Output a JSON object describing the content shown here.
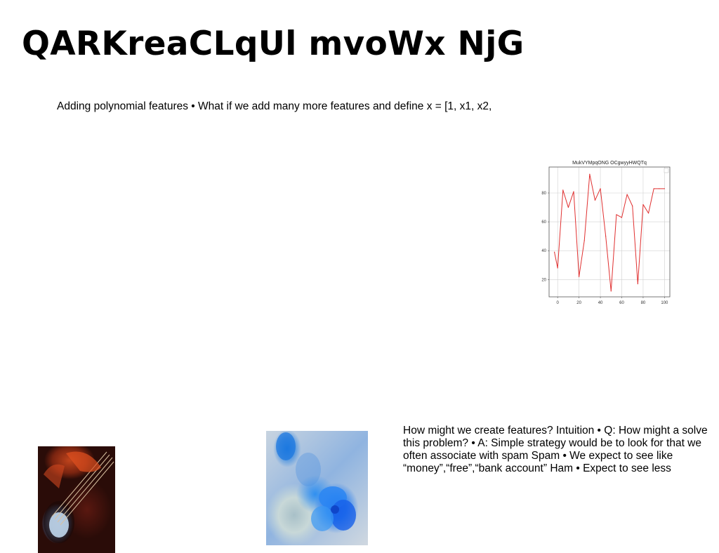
{
  "slide": {
    "title": "QARKreaCLqUl mvoWx NjG",
    "text_a": "Adding polynomial features • What if we add many more features and define x = [1, x1, x2,",
    "text_b": "How might we create features? Intuition • Q: How might a solve this problem? • A: Simple strategy would be to look for that we often associate with spam Spam • We expect to see like “money”,“free”,“bank account” Ham • Expect to see less"
  },
  "images": {
    "guitar": "guitar-photo",
    "flower": "blue-flower-photo"
  },
  "chart_data": {
    "type": "line",
    "title": "MukVYMpqONG OCgwyyHWQTq",
    "x": [
      -3,
      0,
      5,
      10,
      15,
      20,
      25,
      30,
      35,
      40,
      45,
      50,
      55,
      60,
      65,
      70,
      75,
      80,
      85,
      90,
      95,
      100
    ],
    "series": [
      {
        "color": "#e03030",
        "values": [
          39,
          28,
          82,
          70,
          81,
          22,
          47,
          93,
          75,
          83,
          50,
          12,
          65,
          63,
          79,
          71,
          17,
          72,
          66,
          83,
          83,
          83
        ]
      }
    ],
    "xlim": [
      -8,
      105
    ],
    "ylim": [
      8,
      98
    ],
    "xticks": [
      "0",
      "20",
      "40",
      "60",
      "80",
      "100"
    ],
    "yticks": [
      "20",
      "40",
      "60",
      "80"
    ],
    "grid": true,
    "legend": "top-right"
  }
}
